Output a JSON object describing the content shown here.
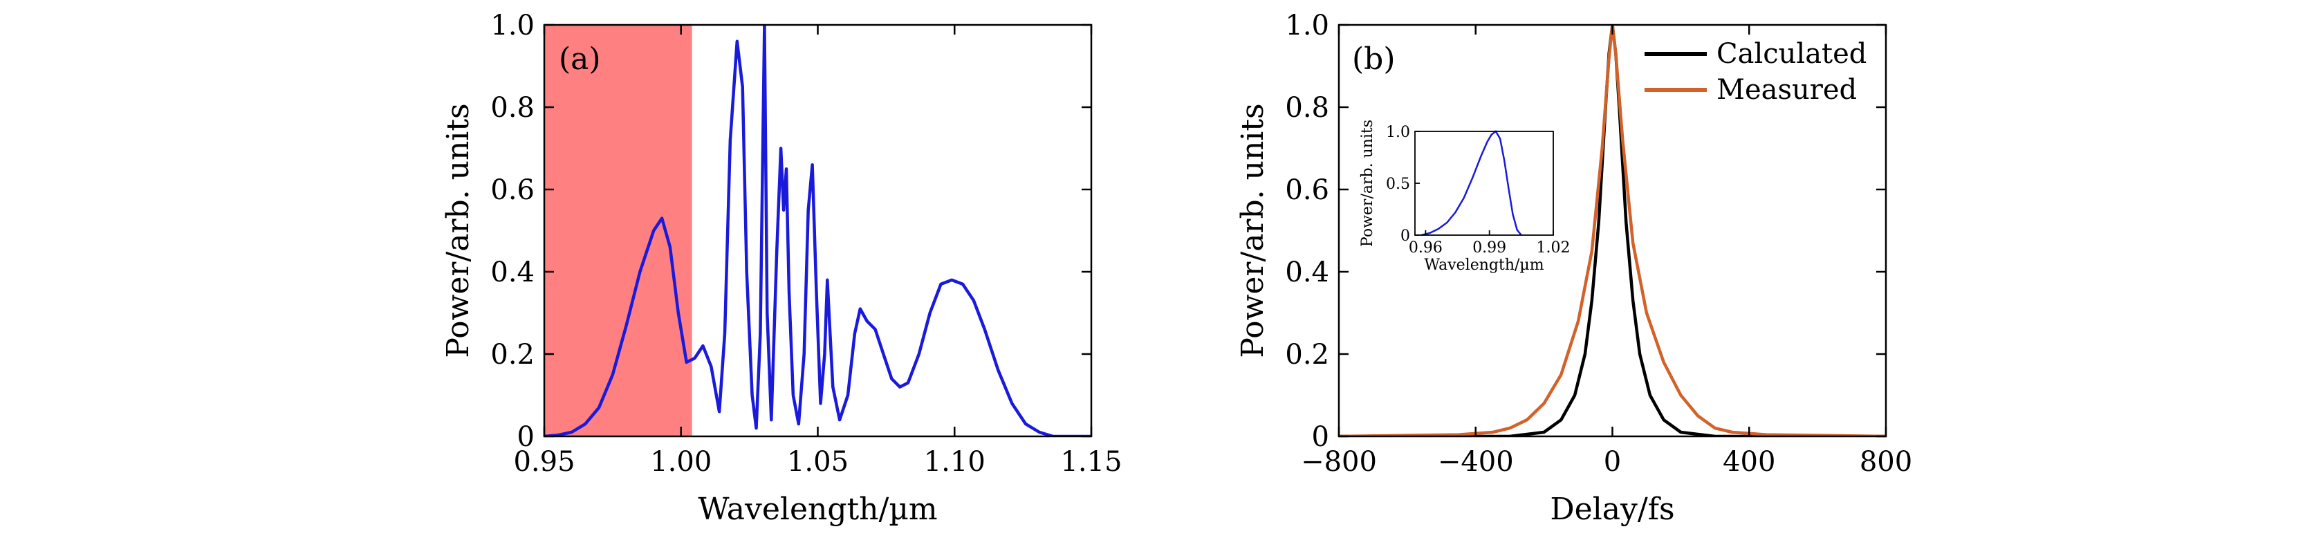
{
  "chart_data": [
    {
      "type": "line",
      "panel_label": "(a)",
      "xlabel": "Wavelength/µm",
      "ylabel": "Power/arb. units",
      "xlim": [
        0.95,
        1.15
      ],
      "ylim": [
        0,
        1.0
      ],
      "xticks": [
        "0.95",
        "1.00",
        "1.05",
        "1.10",
        "1.15"
      ],
      "yticks": [
        "0",
        "0.2",
        "0.4",
        "0.6",
        "0.8",
        "1.0"
      ],
      "grid": false,
      "shaded_region": {
        "x": [
          0.95,
          1.004
        ],
        "color": "#ff8080"
      },
      "series": [
        {
          "color": "#1a1adc",
          "points": [
            [
              0.95,
              0.0
            ],
            [
              0.955,
              0.003
            ],
            [
              0.96,
              0.01
            ],
            [
              0.965,
              0.03
            ],
            [
              0.97,
              0.07
            ],
            [
              0.975,
              0.15
            ],
            [
              0.98,
              0.27
            ],
            [
              0.985,
              0.4
            ],
            [
              0.99,
              0.5
            ],
            [
              0.993,
              0.53
            ],
            [
              0.996,
              0.46
            ],
            [
              0.999,
              0.3
            ],
            [
              1.002,
              0.18
            ],
            [
              1.005,
              0.19
            ],
            [
              1.008,
              0.22
            ],
            [
              1.011,
              0.17
            ],
            [
              1.014,
              0.06
            ],
            [
              1.016,
              0.25
            ],
            [
              1.018,
              0.72
            ],
            [
              1.0205,
              0.96
            ],
            [
              1.0225,
              0.85
            ],
            [
              1.024,
              0.4
            ],
            [
              1.026,
              0.1
            ],
            [
              1.0275,
              0.02
            ],
            [
              1.029,
              0.25
            ],
            [
              1.0305,
              1.0
            ],
            [
              1.0315,
              0.3
            ],
            [
              1.033,
              0.04
            ],
            [
              1.035,
              0.45
            ],
            [
              1.0365,
              0.7
            ],
            [
              1.0375,
              0.55
            ],
            [
              1.0385,
              0.65
            ],
            [
              1.0395,
              0.35
            ],
            [
              1.041,
              0.1
            ],
            [
              1.043,
              0.03
            ],
            [
              1.045,
              0.2
            ],
            [
              1.0465,
              0.55
            ],
            [
              1.048,
              0.66
            ],
            [
              1.0495,
              0.35
            ],
            [
              1.051,
              0.08
            ],
            [
              1.0525,
              0.2
            ],
            [
              1.0535,
              0.38
            ],
            [
              1.0555,
              0.12
            ],
            [
              1.058,
              0.04
            ],
            [
              1.061,
              0.1
            ],
            [
              1.0635,
              0.25
            ],
            [
              1.0655,
              0.31
            ],
            [
              1.068,
              0.28
            ],
            [
              1.071,
              0.26
            ],
            [
              1.074,
              0.2
            ],
            [
              1.077,
              0.14
            ],
            [
              1.08,
              0.12
            ],
            [
              1.083,
              0.13
            ],
            [
              1.087,
              0.2
            ],
            [
              1.091,
              0.3
            ],
            [
              1.095,
              0.37
            ],
            [
              1.099,
              0.38
            ],
            [
              1.103,
              0.37
            ],
            [
              1.107,
              0.33
            ],
            [
              1.111,
              0.26
            ],
            [
              1.116,
              0.16
            ],
            [
              1.121,
              0.08
            ],
            [
              1.126,
              0.03
            ],
            [
              1.131,
              0.01
            ],
            [
              1.136,
              0.0
            ],
            [
              1.15,
              0.0
            ]
          ]
        }
      ]
    },
    {
      "type": "line",
      "panel_label": "(b)",
      "xlabel": "Delay/fs",
      "ylabel": "Power/arb. units",
      "xlim": [
        -800,
        800
      ],
      "ylim": [
        0,
        1.0
      ],
      "xticks": [
        "−800",
        "−400",
        "0",
        "400",
        "800"
      ],
      "yticks": [
        "0",
        "0.2",
        "0.4",
        "0.6",
        "0.8",
        "1.0"
      ],
      "grid": false,
      "legend": {
        "position": "top-right"
      },
      "series": [
        {
          "name": "Calculated",
          "color": "#000000",
          "points": [
            [
              -800,
              0.0
            ],
            [
              -300,
              0.0
            ],
            [
              -200,
              0.01
            ],
            [
              -150,
              0.04
            ],
            [
              -110,
              0.1
            ],
            [
              -80,
              0.2
            ],
            [
              -60,
              0.33
            ],
            [
              -40,
              0.52
            ],
            [
              -20,
              0.8
            ],
            [
              -10,
              0.93
            ],
            [
              0,
              1.0
            ],
            [
              10,
              0.93
            ],
            [
              20,
              0.8
            ],
            [
              40,
              0.52
            ],
            [
              60,
              0.33
            ],
            [
              80,
              0.2
            ],
            [
              110,
              0.1
            ],
            [
              150,
              0.04
            ],
            [
              200,
              0.01
            ],
            [
              300,
              0.0
            ],
            [
              800,
              0.0
            ]
          ]
        },
        {
          "name": "Measured",
          "color": "#d2622a",
          "points": [
            [
              -800,
              0.0
            ],
            [
              -450,
              0.004
            ],
            [
              -350,
              0.01
            ],
            [
              -300,
              0.02
            ],
            [
              -250,
              0.04
            ],
            [
              -200,
              0.08
            ],
            [
              -150,
              0.15
            ],
            [
              -100,
              0.28
            ],
            [
              -60,
              0.45
            ],
            [
              -30,
              0.7
            ],
            [
              -10,
              0.92
            ],
            [
              0,
              1.0
            ],
            [
              10,
              0.93
            ],
            [
              30,
              0.72
            ],
            [
              60,
              0.47
            ],
            [
              100,
              0.3
            ],
            [
              150,
              0.18
            ],
            [
              200,
              0.1
            ],
            [
              250,
              0.05
            ],
            [
              300,
              0.02
            ],
            [
              350,
              0.01
            ],
            [
              450,
              0.004
            ],
            [
              800,
              0.0
            ]
          ]
        }
      ],
      "inset": {
        "xlabel": "Wavelength/µm",
        "ylabel": "Power/arb. units",
        "xlim": [
          0.955,
          1.02
        ],
        "ylim": [
          0,
          1.0
        ],
        "xticks": [
          "0.96",
          "0.99",
          "1.02"
        ],
        "yticks": [
          "0",
          "0.5",
          "1.0"
        ],
        "series": [
          {
            "color": "#1a1adc",
            "points": [
              [
                0.958,
                0.0
              ],
              [
                0.962,
                0.02
              ],
              [
                0.966,
                0.06
              ],
              [
                0.97,
                0.12
              ],
              [
                0.974,
                0.22
              ],
              [
                0.978,
                0.36
              ],
              [
                0.982,
                0.55
              ],
              [
                0.986,
                0.76
              ],
              [
                0.989,
                0.9
              ],
              [
                0.991,
                0.97
              ],
              [
                0.993,
                1.0
              ],
              [
                0.995,
                0.93
              ],
              [
                0.997,
                0.72
              ],
              [
                0.999,
                0.45
              ],
              [
                1.001,
                0.2
              ],
              [
                1.003,
                0.05
              ],
              [
                1.005,
                0.0
              ]
            ]
          }
        ]
      }
    }
  ]
}
